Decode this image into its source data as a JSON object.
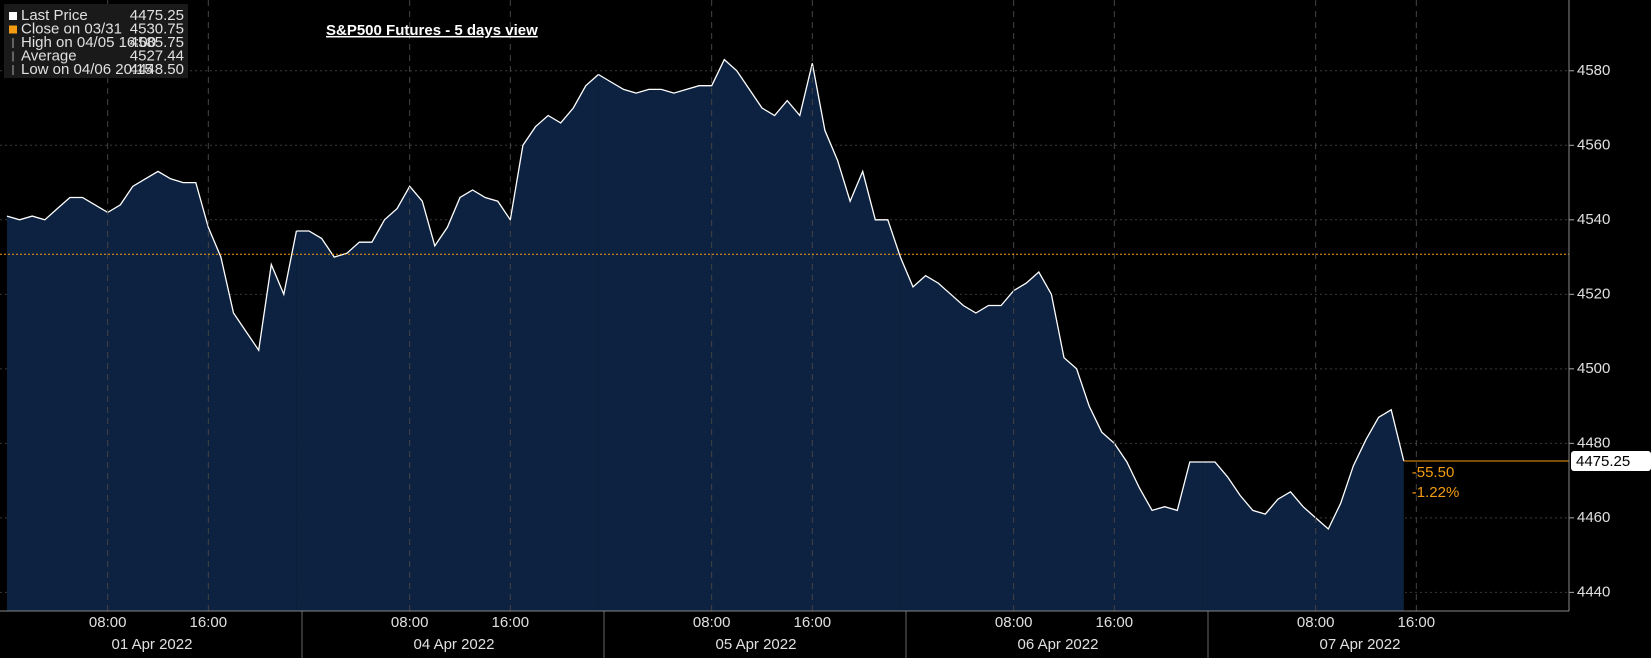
{
  "chart_data": {
    "type": "area",
    "title": "S&P500 Futures - 5 days view",
    "line_color": "#ffffff",
    "fill_color": "#0c2240",
    "ylim": [
      4435,
      4599
    ],
    "yticks": [
      4440,
      4460,
      4480,
      4500,
      4520,
      4540,
      4560,
      4580
    ],
    "grid": true,
    "days": [
      {
        "date": "01 Apr 2022",
        "times": [
          null,
          null,
          null,
          null,
          null,
          null,
          null,
          null,
          "08:00",
          null,
          null,
          null,
          null,
          null,
          null,
          null,
          "16:00",
          null,
          null,
          null,
          null,
          null,
          null,
          null
        ],
        "values": [
          4541,
          4540,
          4541,
          4540,
          4543,
          4546,
          4546,
          4544,
          4542,
          4544,
          4549,
          4551,
          4553,
          4551,
          4550,
          4550,
          4538,
          4530,
          4515,
          4510,
          4505,
          4528,
          4520,
          4537
        ]
      },
      {
        "date": "04 Apr 2022",
        "times": [
          null,
          null,
          null,
          null,
          null,
          null,
          null,
          null,
          "08:00",
          null,
          null,
          null,
          null,
          null,
          null,
          null,
          "16:00",
          null,
          null,
          null,
          null,
          null,
          null,
          null
        ],
        "values": [
          4537,
          4535,
          4530,
          4531,
          4534,
          4534,
          4540,
          4543,
          4549,
          4545,
          4533,
          4538,
          4546,
          4548,
          4546,
          4545,
          4540,
          4560,
          4565,
          4568,
          4566,
          4570,
          4576,
          4579
        ]
      },
      {
        "date": "05 Apr 2022",
        "times": [
          null,
          null,
          null,
          null,
          null,
          null,
          null,
          null,
          "08:00",
          null,
          null,
          null,
          null,
          null,
          null,
          null,
          "16:00",
          null,
          null,
          null,
          null,
          null,
          null,
          null
        ],
        "values": [
          4577,
          4575,
          4574,
          4575,
          4575,
          4574,
          4575,
          4576,
          4576,
          4583,
          4580,
          4575,
          4570,
          4568,
          4572,
          4568,
          4582,
          4564,
          4556,
          4545,
          4553,
          4540,
          4540,
          4530
        ]
      },
      {
        "date": "06 Apr 2022",
        "times": [
          null,
          null,
          null,
          null,
          null,
          null,
          null,
          null,
          "08:00",
          null,
          null,
          null,
          null,
          null,
          null,
          null,
          "16:00",
          null,
          null,
          null,
          null,
          null,
          null,
          null
        ],
        "values": [
          4522,
          4525,
          4523,
          4520,
          4517,
          4515,
          4517,
          4517,
          4521,
          4523,
          4526,
          4520,
          4503,
          4500,
          4490,
          4483,
          4480,
          4475,
          4468,
          4462,
          4463,
          4462,
          4475,
          4475
        ]
      },
      {
        "date": "07 Apr 2022",
        "times": [
          null,
          null,
          null,
          null,
          null,
          null,
          null,
          null,
          "08:00",
          null,
          null,
          null,
          null,
          null,
          null,
          null,
          "16:00",
          null,
          null,
          null,
          null,
          null,
          null,
          null
        ],
        "values": [
          4475,
          4471,
          4466,
          4462,
          4461,
          4465,
          4467,
          4463,
          4460,
          4457,
          4464,
          4474,
          4481,
          4487,
          4489,
          4475.25,
          null,
          null,
          null,
          null,
          null,
          null,
          null,
          null
        ]
      }
    ],
    "legend": [
      {
        "name": "Last Price",
        "value": 4475.25
      },
      {
        "name": "Close on 03/31",
        "value": 4530.75,
        "color": "#f39c12"
      },
      {
        "name": "High on 04/05 16:00",
        "value": 4585.75
      },
      {
        "name": "Average",
        "value": 4527.44
      },
      {
        "name": "Low on 04/06 20:15",
        "value": {
          "value": 4448.5,
          "label": "4448.50"
        }
      }
    ],
    "change": {
      "value": -55.5,
      "label": "-55.50"
    },
    "change_pct": {
      "value": -1.22,
      "label": "-1.22%"
    }
  }
}
